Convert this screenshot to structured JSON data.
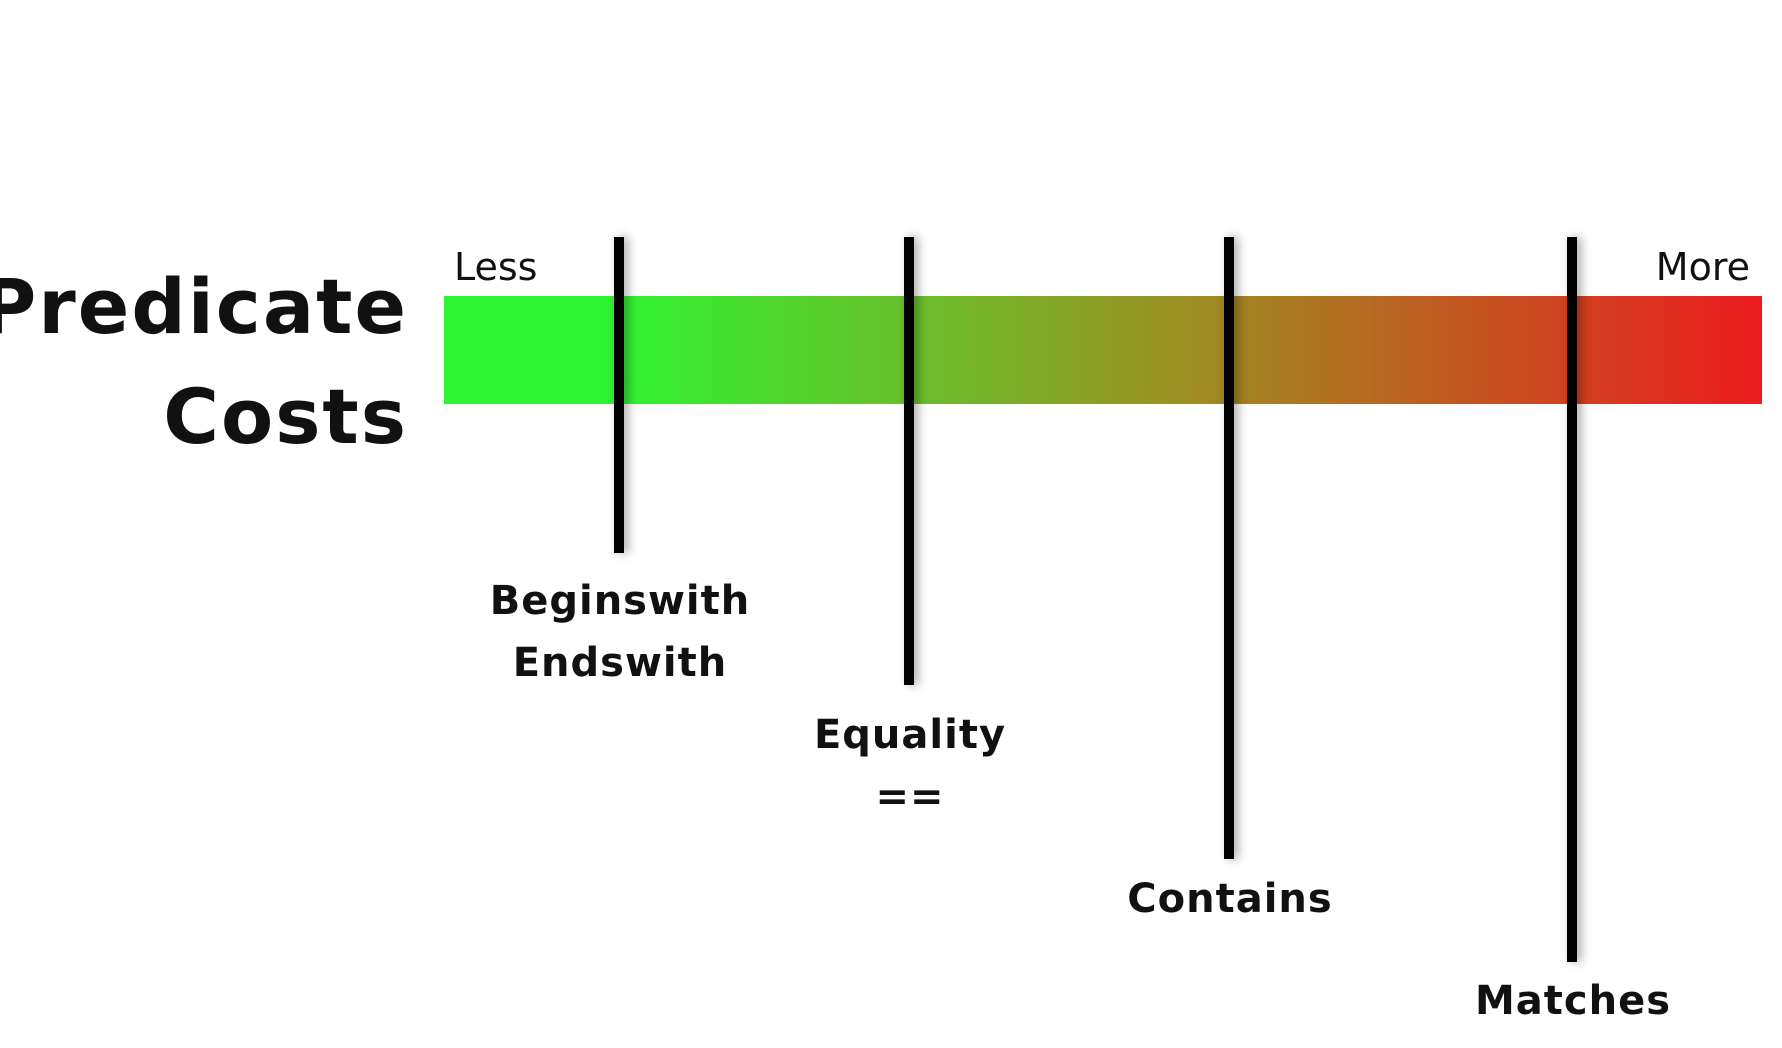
{
  "title": {
    "line1": "Predicate",
    "line2": "Costs"
  },
  "scale": {
    "less_label": "Less",
    "more_label": "More",
    "colors": {
      "low": "#2ef534",
      "mid": "#9a9223",
      "high": "#ec1b1f"
    }
  },
  "markers": [
    {
      "id": "beginswith",
      "lines": [
        "Beginswith",
        "Endswith"
      ],
      "relative_cost": 0.13
    },
    {
      "id": "equality",
      "lines": [
        "Equality",
        "=="
      ],
      "relative_cost": 0.35
    },
    {
      "id": "contains",
      "lines": [
        "Contains"
      ],
      "relative_cost": 0.6
    },
    {
      "id": "matches",
      "lines": [
        "Matches"
      ],
      "relative_cost": 0.86
    }
  ]
}
